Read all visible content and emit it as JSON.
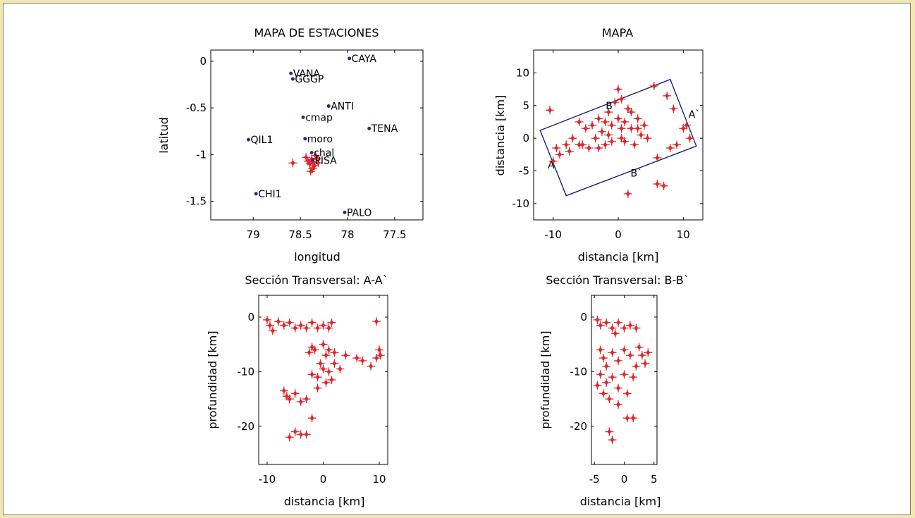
{
  "chart_data": [
    {
      "id": "estaciones",
      "type": "scatter",
      "title": "MAPA DE ESTACIONES",
      "xlabel": "longitud",
      "ylabel": "latitud",
      "x_reversed": true,
      "xlim": [
        79.45,
        77.2
      ],
      "ylim": [
        -1.7,
        0.12
      ],
      "xticks": [
        79,
        78.5,
        78,
        77.5
      ],
      "yticks": [
        0,
        -0.5,
        -1,
        -1.5
      ],
      "station_color": "#2a2a8a",
      "stations": [
        {
          "name": "CAYA",
          "lon": 77.98,
          "lat": 0.03
        },
        {
          "name": "VANA",
          "lon": 78.6,
          "lat": -0.13
        },
        {
          "name": "GGGP",
          "lon": 78.58,
          "lat": -0.19
        },
        {
          "name": "ANTI",
          "lon": 78.2,
          "lat": -0.48
        },
        {
          "name": "cmap",
          "lon": 78.47,
          "lat": -0.6
        },
        {
          "name": "TENA",
          "lon": 77.77,
          "lat": -0.72
        },
        {
          "name": "moro",
          "lon": 78.45,
          "lat": -0.83
        },
        {
          "name": "QIL1",
          "lon": 79.05,
          "lat": -0.84
        },
        {
          "name": "chal",
          "lon": 78.38,
          "lat": -0.98
        },
        {
          "name": "PISA",
          "lon": 78.37,
          "lat": -1.06
        },
        {
          "name": "CHI1",
          "lon": 78.97,
          "lat": -1.42
        },
        {
          "name": "PALO",
          "lon": 78.03,
          "lat": -1.62
        }
      ],
      "events": [
        {
          "lon": 78.38,
          "lat": -1.05
        },
        {
          "lon": 78.36,
          "lat": -1.08
        },
        {
          "lon": 78.33,
          "lat": -1.04
        },
        {
          "lon": 78.4,
          "lat": -1.1
        },
        {
          "lon": 78.35,
          "lat": -1.12
        },
        {
          "lon": 78.42,
          "lat": -1.07
        },
        {
          "lon": 78.31,
          "lat": -1.09
        },
        {
          "lon": 78.37,
          "lat": -1.15
        },
        {
          "lon": 78.44,
          "lat": -1.03
        },
        {
          "lon": 78.34,
          "lat": -1.01
        },
        {
          "lon": 78.58,
          "lat": -1.09
        },
        {
          "lon": 78.39,
          "lat": -1.18
        }
      ]
    },
    {
      "id": "mapa",
      "type": "scatter",
      "title": "MAPA",
      "xlabel": "distancia [km]",
      "ylabel": "distancia [km]",
      "xlim": [
        -13,
        13
      ],
      "ylim": [
        -12.5,
        13.5
      ],
      "xticks": [
        -10,
        0,
        10
      ],
      "yticks": [
        10,
        5,
        0,
        -5,
        -10
      ],
      "box_color": "#1e1e78",
      "event_color": "#e0262b",
      "section_box": [
        [
          -12,
          1.2
        ],
        [
          -8,
          -8.8
        ],
        [
          12,
          -1.2
        ],
        [
          8,
          9
        ]
      ],
      "section_labels": [
        {
          "text": "A",
          "x": -10.3,
          "y": -4.1
        },
        {
          "text": "A`",
          "x": 11.7,
          "y": 3.7
        },
        {
          "text": "B",
          "x": -1.4,
          "y": 5.0
        },
        {
          "text": "B`",
          "x": 2.8,
          "y": -5.3
        }
      ],
      "events": [
        {
          "x": -10.5,
          "y": 4.3
        },
        {
          "x": -9.5,
          "y": -1.5
        },
        {
          "x": -9,
          "y": -2.5
        },
        {
          "x": -10,
          "y": -3.5
        },
        {
          "x": -8,
          "y": -1
        },
        {
          "x": -7,
          "y": 0
        },
        {
          "x": -6,
          "y": -1
        },
        {
          "x": -5,
          "y": 1.5
        },
        {
          "x": -5.5,
          "y": -1
        },
        {
          "x": -4,
          "y": 2
        },
        {
          "x": -3.5,
          "y": 0
        },
        {
          "x": -3,
          "y": 3
        },
        {
          "x": -2.5,
          "y": 1
        },
        {
          "x": -2,
          "y": -1
        },
        {
          "x": -1.5,
          "y": 4
        },
        {
          "x": -1,
          "y": 2
        },
        {
          "x": -0.5,
          "y": 5.5
        },
        {
          "x": 0,
          "y": 3
        },
        {
          "x": 0.5,
          "y": 0
        },
        {
          "x": 1,
          "y": 2.5
        },
        {
          "x": 1.5,
          "y": 4.5
        },
        {
          "x": 2,
          "y": 1.5
        },
        {
          "x": 2.5,
          "y": -1
        },
        {
          "x": 3,
          "y": 3
        },
        {
          "x": 3.5,
          "y": 0.5
        },
        {
          "x": 4,
          "y": 2
        },
        {
          "x": 4.5,
          "y": 0
        },
        {
          "x": -4.5,
          "y": -1.5
        },
        {
          "x": -1,
          "y": -0.5
        },
        {
          "x": 0,
          "y": 7.5
        },
        {
          "x": 0.5,
          "y": 6
        },
        {
          "x": 5.5,
          "y": 8
        },
        {
          "x": 7.5,
          "y": 6.5
        },
        {
          "x": 8.5,
          "y": 4.5
        },
        {
          "x": 10,
          "y": 1.5
        },
        {
          "x": 10.5,
          "y": 2
        },
        {
          "x": 11,
          "y": 0
        },
        {
          "x": 9,
          "y": -1
        },
        {
          "x": 8,
          "y": -1.5
        },
        {
          "x": 6,
          "y": -3
        },
        {
          "x": 1.5,
          "y": -8.5
        },
        {
          "x": 6,
          "y": -7
        },
        {
          "x": 7,
          "y": -7.3
        },
        {
          "x": -2,
          "y": 2.5
        },
        {
          "x": -3,
          "y": -1.5
        },
        {
          "x": 1,
          "y": -0.5
        },
        {
          "x": 3,
          "y": 1.5
        },
        {
          "x": -6,
          "y": 2.5
        },
        {
          "x": -7.5,
          "y": -2
        },
        {
          "x": 2,
          "y": 4
        },
        {
          "x": -1.5,
          "y": 0.5
        },
        {
          "x": 0.5,
          "y": 1.5
        }
      ]
    },
    {
      "id": "seccion_a",
      "type": "scatter",
      "title": "Sección Transversal: A-A`",
      "xlabel": "distancia [km]",
      "ylabel": "profundidad [km]",
      "xlim": [
        -11.5,
        11.5
      ],
      "ylim": [
        -27,
        4
      ],
      "xticks": [
        -10,
        0,
        10
      ],
      "yticks": [
        0,
        -10,
        -20
      ],
      "event_color": "#e0262b",
      "events": [
        {
          "x": -10,
          "y": -0.5
        },
        {
          "x": -9.5,
          "y": -1.5
        },
        {
          "x": -9,
          "y": -2.5
        },
        {
          "x": -8,
          "y": -0.8
        },
        {
          "x": -7,
          "y": -1.5
        },
        {
          "x": -6,
          "y": -1
        },
        {
          "x": -5,
          "y": -2
        },
        {
          "x": -4,
          "y": -1.5
        },
        {
          "x": -3,
          "y": -2
        },
        {
          "x": -2,
          "y": -1
        },
        {
          "x": -1,
          "y": -2
        },
        {
          "x": 0,
          "y": -1.5
        },
        {
          "x": 1,
          "y": -2
        },
        {
          "x": 1.5,
          "y": -1
        },
        {
          "x": 9.5,
          "y": -0.8
        },
        {
          "x": -2.5,
          "y": -6.5
        },
        {
          "x": -1.5,
          "y": -6
        },
        {
          "x": 0,
          "y": -5
        },
        {
          "x": 0.5,
          "y": -7
        },
        {
          "x": 1,
          "y": -6
        },
        {
          "x": 2,
          "y": -6.5
        },
        {
          "x": -0.5,
          "y": -8.5
        },
        {
          "x": 0,
          "y": -9.5
        },
        {
          "x": 1,
          "y": -10
        },
        {
          "x": 2,
          "y": -8.5
        },
        {
          "x": -1,
          "y": -11
        },
        {
          "x": 0.5,
          "y": -12
        },
        {
          "x": -2,
          "y": -10.5
        },
        {
          "x": 1.5,
          "y": -11.5
        },
        {
          "x": 3,
          "y": -9.5
        },
        {
          "x": 4,
          "y": -7
        },
        {
          "x": 6,
          "y": -7.5
        },
        {
          "x": 7,
          "y": -8
        },
        {
          "x": 8.5,
          "y": -9
        },
        {
          "x": 9.5,
          "y": -7.5
        },
        {
          "x": 10,
          "y": -6
        },
        {
          "x": 10.2,
          "y": -7
        },
        {
          "x": -7,
          "y": -13.5
        },
        {
          "x": -6,
          "y": -15
        },
        {
          "x": -5,
          "y": -14
        },
        {
          "x": -4,
          "y": -15.5
        },
        {
          "x": -3,
          "y": -15
        },
        {
          "x": -2,
          "y": -18.5
        },
        {
          "x": -5,
          "y": -21
        },
        {
          "x": -4,
          "y": -21.5
        },
        {
          "x": -3,
          "y": -21.5
        },
        {
          "x": -6,
          "y": -22
        },
        {
          "x": -6.5,
          "y": -14.5
        },
        {
          "x": -2,
          "y": -5.5
        },
        {
          "x": -1,
          "y": -13
        }
      ]
    },
    {
      "id": "seccion_b",
      "type": "scatter",
      "title": "Sección Transversal: B-B`",
      "xlabel": "distancia [km]",
      "ylabel": "profundidad [km]",
      "xlim": [
        -5.5,
        5.5
      ],
      "ylim": [
        -27,
        4
      ],
      "xticks": [
        -5,
        0,
        5
      ],
      "yticks": [
        0,
        -10,
        -20
      ],
      "event_color": "#e0262b",
      "events": [
        {
          "x": -4.5,
          "y": -0.5
        },
        {
          "x": -4,
          "y": -1.5
        },
        {
          "x": -3,
          "y": -1
        },
        {
          "x": -2,
          "y": -2
        },
        {
          "x": -1,
          "y": -1
        },
        {
          "x": 0,
          "y": -2
        },
        {
          "x": 1,
          "y": -1.5
        },
        {
          "x": 2,
          "y": -2
        },
        {
          "x": -4,
          "y": -6
        },
        {
          "x": -3.5,
          "y": -7.5
        },
        {
          "x": -3,
          "y": -9
        },
        {
          "x": -2,
          "y": -6.5
        },
        {
          "x": -1,
          "y": -8
        },
        {
          "x": 0,
          "y": -6
        },
        {
          "x": 1,
          "y": -7
        },
        {
          "x": 2,
          "y": -9
        },
        {
          "x": 3,
          "y": -7
        },
        {
          "x": 4,
          "y": -6.5
        },
        {
          "x": 3.5,
          "y": -8.5
        },
        {
          "x": -4,
          "y": -10.5
        },
        {
          "x": -3,
          "y": -12
        },
        {
          "x": -2,
          "y": -11
        },
        {
          "x": -1,
          "y": -13
        },
        {
          "x": 0,
          "y": -10.5
        },
        {
          "x": -3.5,
          "y": -14
        },
        {
          "x": -2.5,
          "y": -15
        },
        {
          "x": -1,
          "y": -16
        },
        {
          "x": 0.5,
          "y": -14
        },
        {
          "x": 0.5,
          "y": -18.5
        },
        {
          "x": 1.5,
          "y": -18.5
        },
        {
          "x": -2.5,
          "y": -21
        },
        {
          "x": -2,
          "y": -22.5
        },
        {
          "x": -4.5,
          "y": -12.5
        },
        {
          "x": 1.5,
          "y": -11
        },
        {
          "x": -1.5,
          "y": -3
        },
        {
          "x": 2.5,
          "y": -5.5
        }
      ]
    }
  ]
}
